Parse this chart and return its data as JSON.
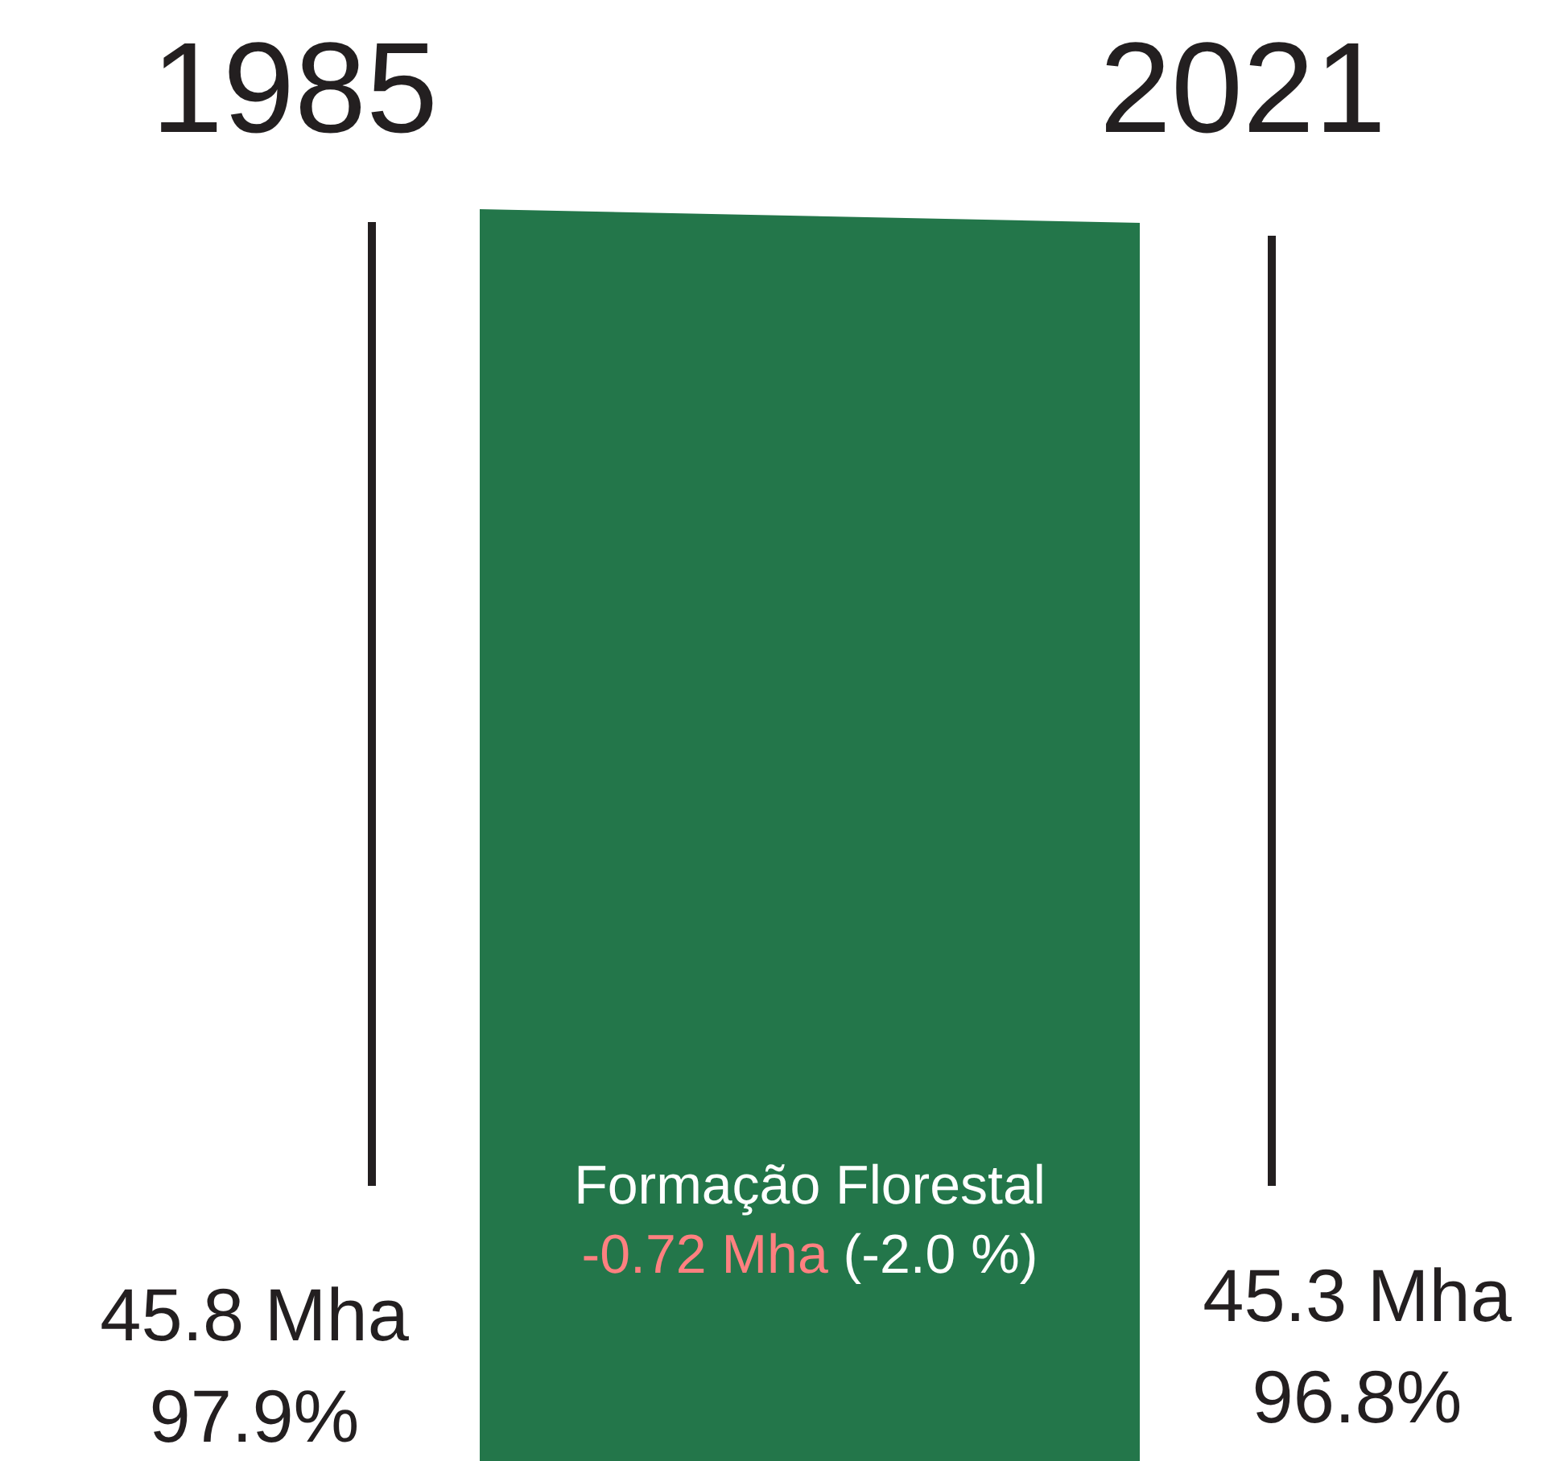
{
  "chart_data": {
    "type": "other",
    "categories": [
      "1985",
      "2021"
    ],
    "series": [
      {
        "color": "#23764a",
        "values": [
          45.8,
          45.3
        ],
        "value_labels": [
          "45.8 Mha",
          "45.3 Mha"
        ]
      }
    ],
    "annotations": [
      "97.9%",
      "96.8%",
      "-0.72 Mha",
      "(-2.0 %)",
      "Formação Florestal"
    ]
  }
}
